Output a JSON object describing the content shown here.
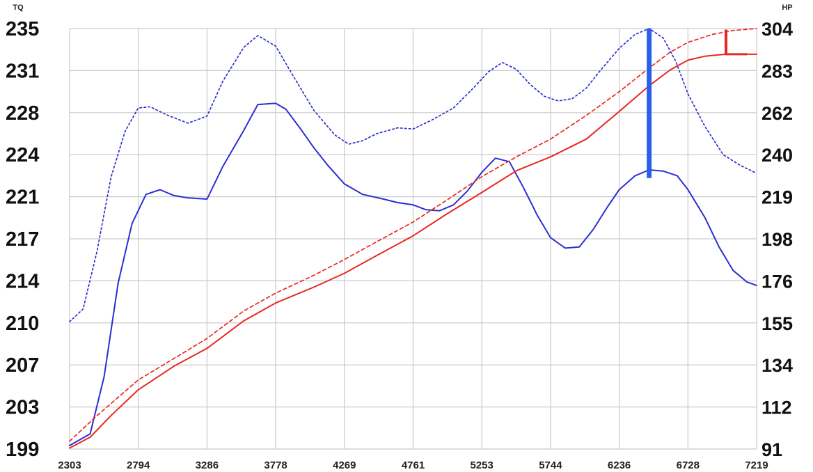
{
  "chart_data": {
    "type": "line",
    "left_axis_label": "TQ",
    "right_axis_label": "HP",
    "x_ticks": [
      "2303",
      "2794",
      "3286",
      "3778",
      "4269",
      "4761",
      "5253",
      "5744",
      "6236",
      "6728",
      "7219"
    ],
    "x_range": [
      2303,
      7219
    ],
    "left_ticks": [
      "235",
      "231",
      "228",
      "224",
      "221",
      "217",
      "214",
      "210",
      "207",
      "203",
      "199"
    ],
    "left_range": [
      199,
      235
    ],
    "right_ticks": [
      "304",
      "283",
      "262",
      "240",
      "219",
      "198",
      "176",
      "155",
      "134",
      "112",
      "91"
    ],
    "right_range": [
      91,
      304
    ],
    "grid": true,
    "series": [
      {
        "axis": "left",
        "color": "#2a2fd0",
        "dash": "dotted",
        "points": [
          [
            2303,
            209.9
          ],
          [
            2400,
            211
          ],
          [
            2500,
            216
          ],
          [
            2600,
            222.3
          ],
          [
            2700,
            226.2
          ],
          [
            2794,
            228.2
          ],
          [
            2880,
            228.3
          ],
          [
            3000,
            227.6
          ],
          [
            3150,
            226.9
          ],
          [
            3286,
            227.5
          ],
          [
            3400,
            230.5
          ],
          [
            3550,
            233.4
          ],
          [
            3650,
            234.4
          ],
          [
            3778,
            233.5
          ],
          [
            3900,
            231
          ],
          [
            4050,
            228
          ],
          [
            4200,
            225.9
          ],
          [
            4300,
            225.1
          ],
          [
            4400,
            225.4
          ],
          [
            4500,
            226
          ],
          [
            4650,
            226.5
          ],
          [
            4761,
            226.4
          ],
          [
            4900,
            227.2
          ],
          [
            5050,
            228.2
          ],
          [
            5200,
            230
          ],
          [
            5300,
            231.3
          ],
          [
            5400,
            232.1
          ],
          [
            5500,
            231.5
          ],
          [
            5600,
            230.2
          ],
          [
            5700,
            229.2
          ],
          [
            5800,
            228.8
          ],
          [
            5900,
            229
          ],
          [
            6000,
            229.9
          ],
          [
            6100,
            231.4
          ],
          [
            6236,
            233.3
          ],
          [
            6350,
            234.5
          ],
          [
            6450,
            235
          ],
          [
            6550,
            234.2
          ],
          [
            6640,
            232.2
          ],
          [
            6728,
            229.4
          ],
          [
            6850,
            226.6
          ],
          [
            6980,
            224.2
          ],
          [
            7100,
            223.3
          ],
          [
            7219,
            222.6
          ]
        ]
      },
      {
        "axis": "left",
        "color": "#2a2fd0",
        "dash": "solid",
        "points": [
          [
            2303,
            199.3
          ],
          [
            2450,
            200.3
          ],
          [
            2550,
            205.2
          ],
          [
            2650,
            213.2
          ],
          [
            2750,
            218.3
          ],
          [
            2850,
            220.8
          ],
          [
            2950,
            221.2
          ],
          [
            3050,
            220.7
          ],
          [
            3150,
            220.5
          ],
          [
            3286,
            220.4
          ],
          [
            3400,
            223.2
          ],
          [
            3550,
            226.3
          ],
          [
            3650,
            228.5
          ],
          [
            3778,
            228.6
          ],
          [
            3850,
            228.1
          ],
          [
            3950,
            226.5
          ],
          [
            4050,
            224.8
          ],
          [
            4150,
            223.3
          ],
          [
            4269,
            221.7
          ],
          [
            4400,
            220.8
          ],
          [
            4550,
            220.4
          ],
          [
            4650,
            220.1
          ],
          [
            4761,
            219.9
          ],
          [
            4850,
            219.5
          ],
          [
            4950,
            219.4
          ],
          [
            5050,
            219.9
          ],
          [
            5150,
            221.1
          ],
          [
            5253,
            222.7
          ],
          [
            5350,
            223.9
          ],
          [
            5450,
            223.6
          ],
          [
            5550,
            221.4
          ],
          [
            5650,
            219
          ],
          [
            5744,
            217.1
          ],
          [
            5850,
            216.2
          ],
          [
            5950,
            216.3
          ],
          [
            6050,
            217.8
          ],
          [
            6150,
            219.7
          ],
          [
            6236,
            221.2
          ],
          [
            6350,
            222.4
          ],
          [
            6450,
            222.9
          ],
          [
            6550,
            222.8
          ],
          [
            6650,
            222.4
          ],
          [
            6728,
            221.2
          ],
          [
            6850,
            218.8
          ],
          [
            6950,
            216.3
          ],
          [
            7050,
            214.3
          ],
          [
            7150,
            213.3
          ],
          [
            7219,
            213
          ]
        ]
      },
      {
        "axis": "right",
        "color": "#e8281f",
        "dash": "dashed",
        "points": [
          [
            2303,
            95
          ],
          [
            2500,
            108
          ],
          [
            2794,
            126
          ],
          [
            3100,
            139
          ],
          [
            3286,
            147
          ],
          [
            3550,
            161
          ],
          [
            3778,
            170
          ],
          [
            4050,
            179
          ],
          [
            4269,
            187
          ],
          [
            4500,
            196
          ],
          [
            4761,
            206
          ],
          [
            5000,
            217
          ],
          [
            5253,
            229
          ],
          [
            5500,
            239
          ],
          [
            5744,
            248
          ],
          [
            6000,
            260
          ],
          [
            6236,
            272
          ],
          [
            6450,
            284
          ],
          [
            6600,
            292
          ],
          [
            6728,
            297
          ],
          [
            6900,
            301
          ],
          [
            7050,
            303
          ],
          [
            7219,
            304
          ]
        ]
      },
      {
        "axis": "right",
        "color": "#e8281f",
        "dash": "solid",
        "points": [
          [
            2303,
            91.5
          ],
          [
            2450,
            97
          ],
          [
            2600,
            108
          ],
          [
            2794,
            121
          ],
          [
            3050,
            133
          ],
          [
            3286,
            142
          ],
          [
            3550,
            156
          ],
          [
            3778,
            165
          ],
          [
            4050,
            173
          ],
          [
            4269,
            180
          ],
          [
            4500,
            189
          ],
          [
            4761,
            199
          ],
          [
            5000,
            210
          ],
          [
            5253,
            221
          ],
          [
            5500,
            232
          ],
          [
            5744,
            239
          ],
          [
            6000,
            248
          ],
          [
            6236,
            262
          ],
          [
            6450,
            275
          ],
          [
            6600,
            283
          ],
          [
            6728,
            288
          ],
          [
            6850,
            290
          ],
          [
            7000,
            291
          ],
          [
            7219,
            291
          ]
        ]
      }
    ],
    "markers": [
      {
        "type": "vertical",
        "axis": "left",
        "x": 6450,
        "y1": 222.2,
        "y2": 235,
        "color": "#2a5fe8"
      },
      {
        "type": "vertical",
        "axis": "right",
        "x": 7000,
        "y1": 291,
        "y2": 303.5,
        "color": "#e8281f"
      }
    ]
  }
}
